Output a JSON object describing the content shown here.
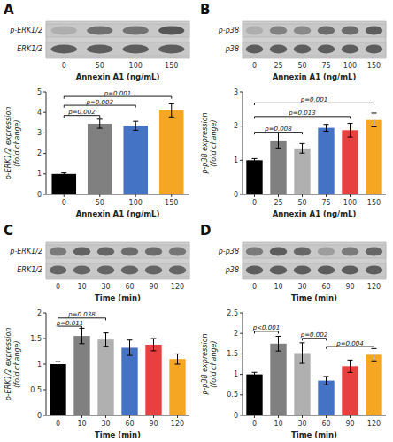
{
  "chart_data": [
    {
      "type": "blot",
      "title": "A",
      "xlabel": "Annexin A1 (ng/mL)",
      "categories": [
        "0",
        "50",
        "100",
        "150"
      ],
      "series": [
        {
          "name": "p-ERK1/2",
          "values": [
            0.18,
            0.62,
            0.6,
            0.8
          ]
        },
        {
          "name": "ERK1/2",
          "values": [
            0.75,
            0.75,
            0.75,
            0.75
          ]
        }
      ]
    },
    {
      "type": "bar",
      "ylabel": "p-ERK1/2 expression\n(fold change)",
      "xlabel": "Annexin A1 (ng/mL)",
      "categories": [
        "0",
        "50",
        "100",
        "150"
      ],
      "values": [
        1.0,
        3.45,
        3.35,
        4.1
      ],
      "errors": [
        0.05,
        0.22,
        0.22,
        0.32
      ],
      "colors": [
        "#000000",
        "#808080",
        "#4472c4",
        "#F5A623"
      ],
      "ylim": [
        0,
        5
      ],
      "yticks": [
        0,
        1,
        2,
        3,
        4,
        5
      ],
      "annotations": [
        {
          "x1": 0,
          "x2": 1,
          "y": 3.85,
          "label": "p=0.002"
        },
        {
          "x1": 0,
          "x2": 2,
          "y": 4.35,
          "label": "p=0.003"
        },
        {
          "x1": 0,
          "x2": 3,
          "y": 4.78,
          "label": "p=0.001"
        }
      ]
    },
    {
      "type": "blot",
      "title": "B",
      "xlabel": "Annexin A1 (ng/mL)",
      "categories": [
        "0",
        "25",
        "50",
        "75",
        "100",
        "150"
      ],
      "series": [
        {
          "name": "p-p38",
          "values": [
            0.18,
            0.5,
            0.44,
            0.65,
            0.65,
            0.75
          ]
        },
        {
          "name": "p38",
          "values": [
            0.75,
            0.75,
            0.75,
            0.75,
            0.75,
            0.75
          ]
        }
      ]
    },
    {
      "type": "bar",
      "ylabel": "p-p38 expression\n(fold change)",
      "xlabel": "Annexin A1 (ng/mL)",
      "categories": [
        "0",
        "25",
        "50",
        "75",
        "100",
        "150"
      ],
      "values": [
        1.0,
        1.58,
        1.35,
        1.95,
        1.88,
        2.18
      ],
      "errors": [
        0.05,
        0.22,
        0.14,
        0.1,
        0.2,
        0.2
      ],
      "colors": [
        "#000000",
        "#808080",
        "#b0b0b0",
        "#4472c4",
        "#e84040",
        "#F5A623"
      ],
      "ylim": [
        0,
        3
      ],
      "yticks": [
        0,
        1,
        2,
        3
      ],
      "annotations": [
        {
          "x1": 0,
          "x2": 2,
          "y": 1.82,
          "label": "p=0.008"
        },
        {
          "x1": 0,
          "x2": 4,
          "y": 2.28,
          "label": "p=0.013"
        },
        {
          "x1": 0,
          "x2": 5,
          "y": 2.68,
          "label": "p=0.001"
        }
      ]
    },
    {
      "type": "blot",
      "title": "C",
      "xlabel": "Time (min)",
      "categories": [
        "0",
        "10",
        "30",
        "60",
        "90",
        "120"
      ],
      "series": [
        {
          "name": "p-ERK1/2",
          "values": [
            0.55,
            0.72,
            0.7,
            0.65,
            0.65,
            0.58
          ]
        },
        {
          "name": "ERK1/2",
          "values": [
            0.7,
            0.7,
            0.7,
            0.7,
            0.7,
            0.7
          ]
        }
      ]
    },
    {
      "type": "bar",
      "ylabel": "p-ERK1/2 expression\n(fold change)",
      "xlabel": "Time (min)",
      "categories": [
        "0",
        "10",
        "30",
        "60",
        "90",
        "120"
      ],
      "values": [
        1.0,
        1.55,
        1.48,
        1.32,
        1.38,
        1.1
      ],
      "errors": [
        0.05,
        0.15,
        0.13,
        0.15,
        0.12,
        0.1
      ],
      "colors": [
        "#000000",
        "#808080",
        "#b0b0b0",
        "#4472c4",
        "#e84040",
        "#F5A623"
      ],
      "ylim": [
        0,
        2
      ],
      "yticks": [
        0,
        0.5,
        1,
        1.5,
        2
      ],
      "annotations": [
        {
          "x1": 0,
          "x2": 1,
          "y": 1.74,
          "label": "p=0.011"
        },
        {
          "x1": 0,
          "x2": 2,
          "y": 1.9,
          "label": "p=0.038"
        }
      ]
    },
    {
      "type": "blot",
      "title": "D",
      "xlabel": "Time (min)",
      "categories": [
        "0",
        "10",
        "30",
        "60",
        "90",
        "120"
      ],
      "series": [
        {
          "name": "p-p38",
          "values": [
            0.55,
            0.75,
            0.68,
            0.3,
            0.55,
            0.68
          ]
        },
        {
          "name": "p38",
          "values": [
            0.75,
            0.75,
            0.75,
            0.75,
            0.75,
            0.75
          ]
        }
      ]
    },
    {
      "type": "bar",
      "ylabel": "p-p38 expression\n(fold change)",
      "xlabel": "Time (min)",
      "categories": [
        "0",
        "10",
        "30",
        "60",
        "90",
        "120"
      ],
      "values": [
        1.0,
        1.75,
        1.52,
        0.85,
        1.2,
        1.48
      ],
      "errors": [
        0.05,
        0.18,
        0.25,
        0.1,
        0.15,
        0.15
      ],
      "colors": [
        "#000000",
        "#808080",
        "#b0b0b0",
        "#4472c4",
        "#e84040",
        "#F5A623"
      ],
      "ylim": [
        0,
        2.5
      ],
      "yticks": [
        0,
        0.5,
        1,
        1.5,
        2,
        2.5
      ],
      "annotations": [
        {
          "x1": 0,
          "x2": 1,
          "y": 2.05,
          "label": "p<0.001"
        },
        {
          "x1": 2,
          "x2": 3,
          "y": 1.88,
          "label": "p=0.002"
        },
        {
          "x1": 3,
          "x2": 5,
          "y": 1.68,
          "label": "p=0.004"
        }
      ]
    }
  ]
}
